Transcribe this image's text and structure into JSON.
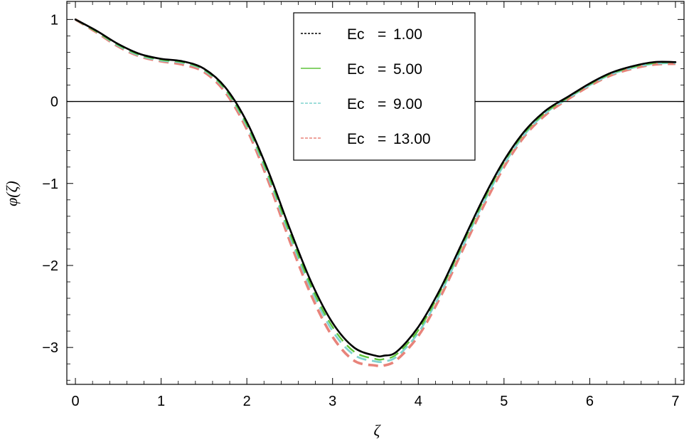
{
  "chart_data": {
    "type": "line",
    "title": "",
    "xlabel": "ζ",
    "ylabel": "φ(ζ)",
    "xlim": [
      -0.1,
      7.1
    ],
    "ylim": [
      -3.45,
      1.22
    ],
    "xticks": [
      0,
      1,
      2,
      3,
      4,
      5,
      6,
      7
    ],
    "yticks": [
      -3,
      -2,
      -1,
      0,
      1
    ],
    "grid": false,
    "zero_line": true,
    "legend_position": "top-center",
    "series": [
      {
        "name": "Ec = 1.00",
        "legend_name": "Ec",
        "legend_value": "1.00",
        "color": "#000000",
        "dash": "short-dash",
        "x": [
          0,
          0.25,
          0.5,
          0.75,
          1.0,
          1.25,
          1.5,
          1.75,
          2.0,
          2.25,
          2.5,
          2.75,
          3.0,
          3.25,
          3.5,
          3.6,
          3.75,
          4.0,
          4.25,
          4.5,
          4.75,
          5.0,
          5.25,
          5.5,
          5.75,
          6.0,
          6.25,
          6.5,
          6.75,
          7.0
        ],
        "y": [
          1.0,
          0.86,
          0.7,
          0.58,
          0.52,
          0.49,
          0.4,
          0.17,
          -0.25,
          -0.85,
          -1.55,
          -2.2,
          -2.7,
          -3.0,
          -3.1,
          -3.1,
          -3.05,
          -2.75,
          -2.3,
          -1.75,
          -1.2,
          -0.72,
          -0.35,
          -0.1,
          0.06,
          0.22,
          0.35,
          0.43,
          0.48,
          0.48
        ]
      },
      {
        "name": "Ec = 5.00",
        "legend_name": "Ec",
        "legend_value": "5.00",
        "color": "#5ec43a",
        "dash": "long-dash",
        "x": [
          0,
          0.25,
          0.5,
          0.75,
          1.0,
          1.25,
          1.5,
          1.75,
          2.0,
          2.25,
          2.5,
          2.75,
          3.0,
          3.25,
          3.5,
          3.6,
          3.75,
          4.0,
          4.25,
          4.5,
          4.75,
          5.0,
          5.25,
          5.5,
          5.75,
          6.0,
          6.25,
          6.5,
          6.75,
          7.0
        ],
        "y": [
          1.0,
          0.85,
          0.69,
          0.57,
          0.51,
          0.48,
          0.39,
          0.15,
          -0.28,
          -0.89,
          -1.6,
          -2.25,
          -2.75,
          -3.05,
          -3.14,
          -3.14,
          -3.08,
          -2.79,
          -2.33,
          -1.78,
          -1.23,
          -0.74,
          -0.37,
          -0.12,
          0.05,
          0.21,
          0.34,
          0.42,
          0.47,
          0.48
        ]
      },
      {
        "name": "Ec = 9.00",
        "legend_name": "Ec",
        "legend_value": "9.00",
        "color": "#7fd3cf",
        "dash": "long-dash",
        "x": [
          0,
          0.25,
          0.5,
          0.75,
          1.0,
          1.25,
          1.5,
          1.75,
          2.0,
          2.25,
          2.5,
          2.75,
          3.0,
          3.25,
          3.5,
          3.6,
          3.75,
          4.0,
          4.25,
          4.5,
          4.75,
          5.0,
          5.25,
          5.5,
          5.75,
          6.0,
          6.25,
          6.5,
          6.75,
          7.0
        ],
        "y": [
          1.0,
          0.85,
          0.68,
          0.56,
          0.5,
          0.47,
          0.38,
          0.14,
          -0.3,
          -0.92,
          -1.64,
          -2.29,
          -2.8,
          -3.09,
          -3.17,
          -3.17,
          -3.11,
          -2.82,
          -2.36,
          -1.81,
          -1.26,
          -0.77,
          -0.39,
          -0.13,
          0.04,
          0.2,
          0.33,
          0.41,
          0.46,
          0.47
        ]
      },
      {
        "name": "Ec = 13.00",
        "legend_name": "Ec",
        "legend_value": "13.00",
        "color": "#e8837a",
        "dash": "long-dash",
        "x": [
          0,
          0.25,
          0.5,
          0.75,
          1.0,
          1.25,
          1.5,
          1.75,
          2.0,
          2.25,
          2.5,
          2.75,
          3.0,
          3.25,
          3.5,
          3.6,
          3.75,
          4.0,
          4.25,
          4.5,
          4.75,
          5.0,
          5.25,
          5.5,
          5.75,
          6.0,
          6.25,
          6.5,
          6.75,
          7.0
        ],
        "y": [
          1.0,
          0.84,
          0.67,
          0.55,
          0.49,
          0.45,
          0.36,
          0.11,
          -0.34,
          -0.97,
          -1.7,
          -2.36,
          -2.87,
          -3.16,
          -3.22,
          -3.22,
          -3.15,
          -2.86,
          -2.4,
          -1.85,
          -1.3,
          -0.8,
          -0.41,
          -0.15,
          0.03,
          0.19,
          0.32,
          0.4,
          0.45,
          0.46
        ]
      }
    ]
  }
}
